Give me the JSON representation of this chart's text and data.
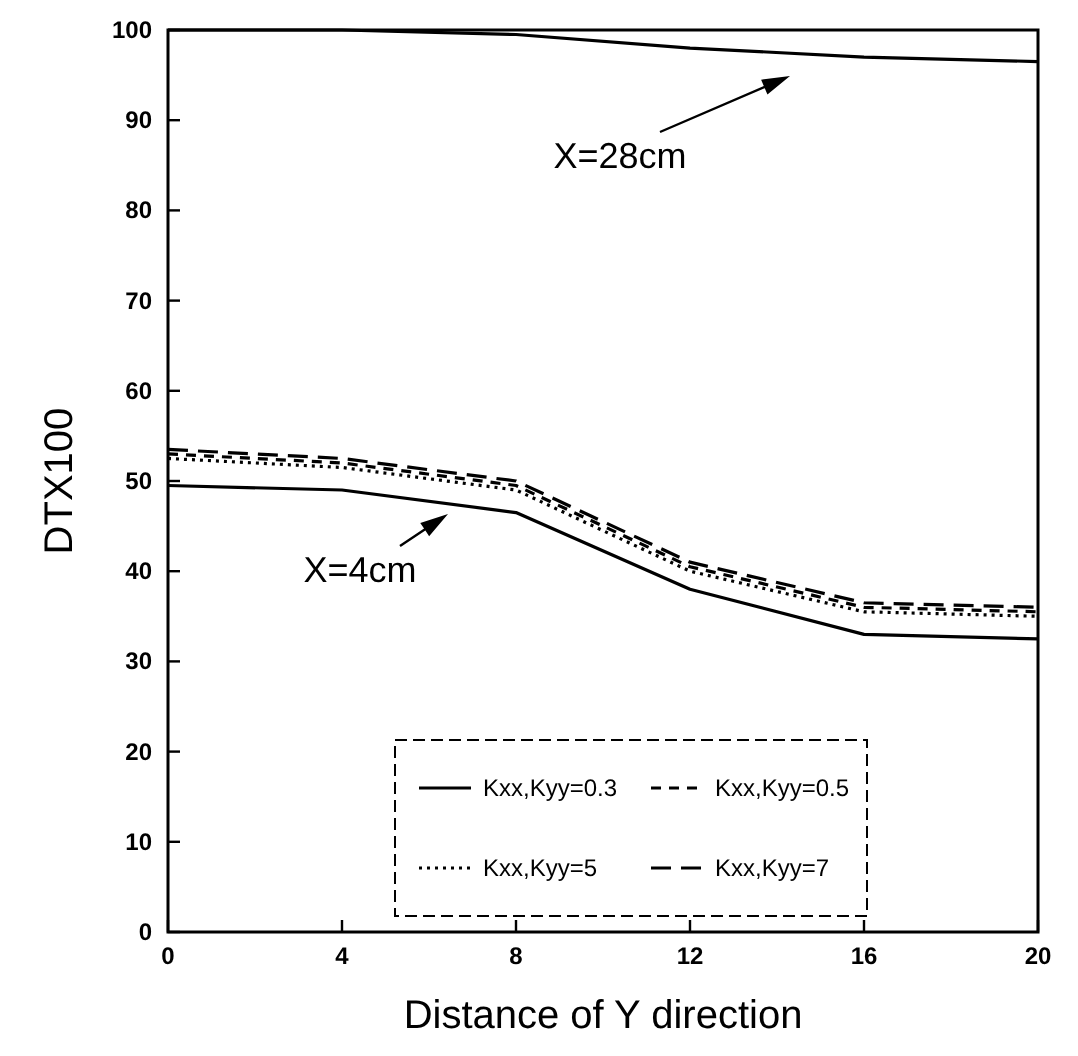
{
  "chart_data": {
    "type": "line",
    "xlabel": "Distance of Y direction",
    "ylabel": "DTX100",
    "x": [
      0,
      4,
      8,
      12,
      16,
      20
    ],
    "xlim": [
      0,
      20
    ],
    "xticks": [
      0,
      4,
      8,
      12,
      16,
      20
    ],
    "ylim": [
      0,
      100
    ],
    "yticks": [
      0,
      10,
      20,
      30,
      40,
      50,
      60,
      70,
      80,
      90,
      100
    ],
    "grid": false,
    "legend": "bottom",
    "marker": "none",
    "series": [
      {
        "name": "Kxx,Kyy=0.3",
        "color": "#000000",
        "line_style": "solid",
        "values": [
          49.5,
          49,
          46.5,
          38,
          33,
          32.5
        ]
      },
      {
        "name": "Kxx,Kyy=0.5",
        "color": "#000000",
        "line_style": "dashed",
        "values": [
          53,
          52,
          49.5,
          40.5,
          36,
          35.5
        ]
      },
      {
        "name": "Kxx,Kyy=5",
        "color": "#000000",
        "line_style": "dotted",
        "values": [
          52.5,
          51.5,
          49,
          40,
          35.5,
          35
        ]
      },
      {
        "name": "Kxx,Kyy=7",
        "color": "#000000",
        "line_style": "longdash",
        "values": [
          53.5,
          52.5,
          50,
          41,
          36.5,
          36
        ]
      },
      {
        "color": "#000000",
        "line_style": "solid",
        "values": [
          100,
          100,
          99.5,
          98,
          97,
          96.5
        ]
      }
    ],
    "annotations": [
      "X=28cm",
      "X=4cm"
    ]
  }
}
